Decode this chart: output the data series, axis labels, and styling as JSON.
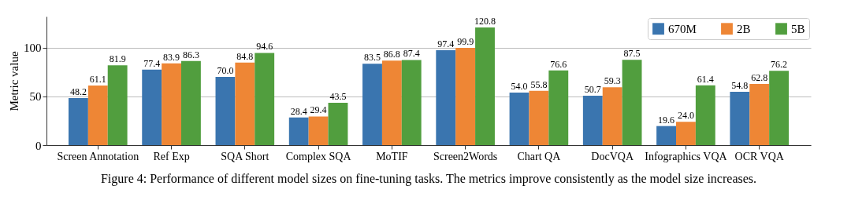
{
  "chart_data": {
    "type": "bar",
    "ylabel": "Metric value",
    "categories": [
      "Screen Annotation",
      "Ref Exp",
      "SQA Short",
      "Complex SQA",
      "MoTIF",
      "Screen2Words",
      "Chart QA",
      "DocVQA",
      "Infographics VQA",
      "OCR VQA"
    ],
    "series": [
      {
        "name": "670M",
        "color": "#3a75af",
        "values": [
          48.2,
          77.4,
          70.0,
          28.4,
          83.5,
          97.4,
          54.0,
          50.7,
          19.6,
          54.8
        ],
        "value_labels": [
          "48.2",
          "77.4",
          "70.0",
          "28.4",
          "83.5",
          "97.4",
          "54.0",
          "50.7",
          "19.6",
          "54.8"
        ]
      },
      {
        "name": "2B",
        "color": "#ee8635",
        "values": [
          61.1,
          83.9,
          84.8,
          29.4,
          86.8,
          99.9,
          55.8,
          59.3,
          24.0,
          62.8
        ],
        "value_labels": [
          "61.1",
          "83.9",
          "84.8",
          "29.4",
          "86.8",
          "99.9",
          "55.8",
          "59.3",
          "24.0",
          "62.8"
        ]
      },
      {
        "name": "5B",
        "color": "#519e3e",
        "values": [
          81.9,
          86.3,
          94.6,
          43.5,
          87.4,
          120.8,
          76.6,
          87.5,
          61.4,
          76.2
        ],
        "value_labels": [
          "81.9",
          "86.3",
          "94.6",
          "43.5",
          "87.4",
          "120.8",
          "76.6",
          "87.5",
          "61.4",
          "76.2"
        ]
      }
    ],
    "ylim": [
      0,
      132
    ],
    "yticks": [
      0,
      50,
      100
    ],
    "grid": "y",
    "legend": "top right",
    "annotations": [
      "Figure 4: Performance of different model sizes on fine-tuning tasks. The metrics improve consistently as the model size increases."
    ]
  }
}
